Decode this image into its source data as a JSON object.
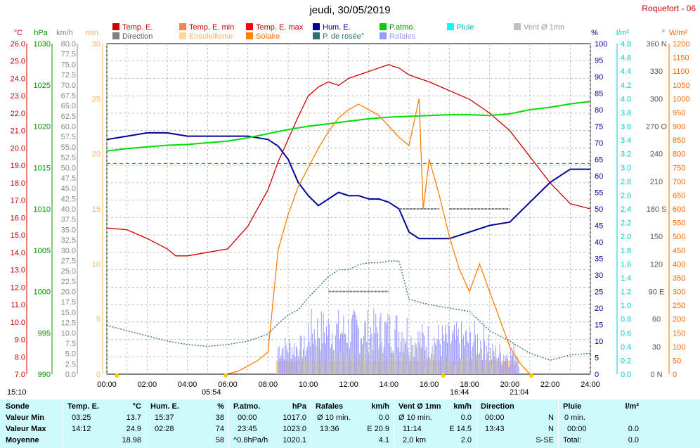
{
  "header": {
    "title": "jeudi, 30/05/2019",
    "station": "Roquefort - 06"
  },
  "legend": [
    {
      "label": "Temp. E.",
      "color": "#cc0000",
      "text_color": "#cc0000"
    },
    {
      "label": "Temp. E. min",
      "color": "#ff7f50",
      "text_color": "#cc0000"
    },
    {
      "label": "Temp. E. max",
      "color": "#ff0000",
      "text_color": "#cc0000"
    },
    {
      "label": "P.atmo.",
      "color": "#00cc00",
      "text_color": "#009900"
    },
    {
      "label": "Pluie",
      "color": "#00ffff",
      "text_color": "#00bbbb"
    },
    {
      "label": "Vent Ø 1mn",
      "color": "#c0c0c0",
      "text_color": "#999999"
    },
    {
      "label": "Direction",
      "color": "#808080",
      "text_color": "#555555"
    },
    {
      "label": "Ensoleilleme",
      "color": "#ffd59a",
      "text_color": "#ffb060"
    },
    {
      "label": "Solaire",
      "color": "#ff8000",
      "text_color": "#ff6600"
    },
    {
      "label": "Hum. E.",
      "color": "#000099",
      "text_color": "#000099"
    },
    {
      "label": "P. de rosée°",
      "color": "#2f6f6f",
      "text_color": "#2f6f6f"
    },
    {
      "label": "Rafales",
      "color": "#9999ff",
      "text_color": "#9999ff"
    }
  ],
  "axes": {
    "units_left": [
      "°C",
      "hPa",
      "km/h",
      "min"
    ],
    "units_right": [
      "%",
      "l/m²",
      "°",
      "W/m²"
    ],
    "temp_ticks": [
      "26.0",
      "25.0",
      "24.0",
      "23.0",
      "22.0",
      "21.0",
      "20.0",
      "19.0",
      "18.0",
      "17.0",
      "16.0",
      "15.0",
      "14.0",
      "13.0",
      "12.0",
      "11.0",
      "10.0",
      "9.0",
      "8.0",
      "7.0"
    ],
    "hpa_ticks": [
      "1030",
      "1025",
      "1020",
      "1015",
      "1010",
      "1005",
      "1000",
      "995",
      "990"
    ],
    "kmh_ticks": [
      "80.0",
      "77.5",
      "75.0",
      "72.5",
      "70.0",
      "67.5",
      "65.0",
      "62.5",
      "60.0",
      "57.5",
      "55.0",
      "52.5",
      "50.0",
      "47.5",
      "45.0",
      "42.5",
      "40.0",
      "37.5",
      "35.0",
      "32.5",
      "30.0",
      "27.5",
      "25.0",
      "22.5",
      "20.0",
      "17.5",
      "15.0",
      "12.5",
      "10.0",
      "7.5",
      "5.0",
      "2.5",
      "0.0"
    ],
    "min_ticks": [
      "30",
      "25",
      "20",
      "15",
      "10",
      "5",
      "0"
    ],
    "pct_ticks": [
      "100",
      "95",
      "90",
      "85",
      "80",
      "75",
      "70",
      "65",
      "60",
      "55",
      "50",
      "45",
      "40",
      "35",
      "30",
      "25",
      "20",
      "15",
      "10",
      "5",
      "0"
    ],
    "rain_ticks": [
      "4.8",
      "4.6",
      "4.4",
      "4.2",
      "4.0",
      "3.8",
      "3.6",
      "3.4",
      "3.2",
      "3.0",
      "2.8",
      "2.6",
      "2.4",
      "2.2",
      "2.0",
      "1.8",
      "1.6",
      "1.4",
      "1.2",
      "1.0",
      "0.8",
      "0.6",
      "0.4",
      "0.2",
      "0.0"
    ],
    "dir_ticks": [
      "360 N",
      "330",
      "300",
      "270 O",
      "240",
      "210",
      "180 S",
      "150",
      "120",
      "90 E",
      "60",
      "30",
      "0 N"
    ],
    "wm2_ticks": [
      "1200",
      "1150",
      "1100",
      "1050",
      "1000",
      "950",
      "900",
      "850",
      "800",
      "750",
      "700",
      "650",
      "600",
      "550",
      "500",
      "450",
      "400",
      "350",
      "300",
      "250",
      "200",
      "150",
      "100",
      "50",
      "0"
    ],
    "time_ticks": [
      "00:00",
      "02:00",
      "04:00",
      "06:00",
      "08:00",
      "10:00",
      "12:00",
      "14:00",
      "16:00",
      "18:00",
      "20:00",
      "22:00",
      "24:00"
    ]
  },
  "events": {
    "e1": "15:10",
    "e2": "05:54",
    "e3": "16:44",
    "e4": "21:04"
  },
  "chart_data": {
    "type": "line",
    "x_unit": "hours",
    "xlim": [
      0,
      24
    ],
    "series": [
      {
        "name": "Temp. E.",
        "axis": "°C",
        "ylim": [
          7,
          26
        ],
        "x": [
          0,
          1,
          2,
          3,
          3.42,
          4,
          5,
          6,
          7,
          8,
          8.5,
          9,
          9.5,
          10,
          10.5,
          11,
          11.5,
          12,
          12.5,
          13,
          13.5,
          14,
          14.2,
          14.5,
          15,
          15.5,
          16,
          17,
          18,
          19,
          20,
          21,
          22,
          23,
          24
        ],
        "y": [
          15.4,
          15.3,
          14.8,
          14.2,
          13.8,
          13.8,
          14.0,
          14.2,
          15.5,
          17.6,
          19.2,
          20.5,
          21.8,
          23.0,
          23.5,
          23.8,
          23.6,
          24.0,
          24.2,
          24.4,
          24.6,
          24.8,
          24.7,
          24.6,
          24.2,
          24.0,
          23.8,
          23.3,
          22.8,
          22.0,
          21.0,
          19.5,
          18.0,
          16.8,
          16.5
        ]
      },
      {
        "name": "Hum. E.",
        "axis": "%",
        "ylim": [
          0,
          100
        ],
        "x": [
          0,
          1,
          2,
          3,
          4,
          5,
          6,
          7,
          8,
          8.5,
          9,
          9.5,
          10,
          10.5,
          11,
          11.5,
          12,
          12.5,
          13,
          13.5,
          14,
          14.5,
          15,
          15.5,
          16,
          17,
          18,
          19,
          20,
          20.5,
          21,
          22,
          23,
          24
        ],
        "y": [
          71,
          72,
          73,
          73,
          72,
          72,
          72,
          72,
          71,
          69,
          65,
          58,
          54,
          51,
          53,
          55,
          54,
          54,
          53,
          53,
          52,
          50,
          43,
          41,
          41,
          41,
          43,
          45,
          46,
          49,
          52,
          58,
          62,
          62
        ]
      },
      {
        "name": "P.atmo.",
        "axis": "hPa",
        "ylim": [
          990,
          1030
        ],
        "x": [
          0,
          1,
          2,
          3,
          4,
          5,
          6,
          7,
          8,
          9,
          10,
          11,
          12,
          13,
          14,
          15,
          16,
          17,
          18,
          19,
          20,
          21,
          22,
          23,
          24
        ],
        "y": [
          1017.0,
          1017.3,
          1017.5,
          1017.7,
          1017.8,
          1018.0,
          1018.2,
          1018.6,
          1019.1,
          1019.6,
          1020.0,
          1020.3,
          1020.6,
          1020.9,
          1021.1,
          1021.2,
          1021.3,
          1021.4,
          1021.4,
          1021.3,
          1021.5,
          1022.0,
          1022.3,
          1022.7,
          1023.0
        ]
      },
      {
        "name": "Solaire",
        "axis": "W/m²",
        "ylim": [
          0,
          1200
        ],
        "x": [
          5.9,
          6.5,
          7,
          7.5,
          8,
          8.3,
          8.5,
          9,
          9.5,
          10,
          10.5,
          11,
          11.5,
          12,
          12.5,
          13,
          13.5,
          14,
          14.5,
          15,
          15.5,
          15.7,
          16,
          16.5,
          17,
          17.5,
          18,
          18.5,
          19,
          19.5,
          20,
          20.5,
          21
        ],
        "y": [
          0,
          10,
          30,
          50,
          80,
          300,
          450,
          580,
          680,
          750,
          820,
          880,
          930,
          960,
          980,
          960,
          940,
          900,
          860,
          830,
          1000,
          600,
          780,
          650,
          500,
          380,
          300,
          400,
          300,
          200,
          100,
          40,
          0
        ]
      },
      {
        "name": "P. de rosée°",
        "axis": "°C",
        "ylim": [
          7,
          26
        ],
        "x": [
          0,
          1,
          2,
          3,
          4,
          5,
          6,
          7,
          8,
          8.5,
          9,
          9.5,
          10,
          10.5,
          11,
          11.5,
          12,
          12.5,
          13,
          13.5,
          14,
          14.5,
          15,
          16,
          17,
          18,
          19,
          20,
          21,
          22,
          23,
          24
        ],
        "y": [
          9.8,
          9.5,
          9.2,
          8.9,
          8.7,
          8.6,
          8.7,
          8.9,
          9.3,
          9.9,
          10.4,
          10.7,
          11.4,
          12.0,
          12.6,
          13.0,
          13.0,
          13.3,
          13.4,
          13.4,
          13.5,
          13.5,
          11.3,
          11.0,
          10.8,
          10.6,
          9.5,
          8.9,
          8.2,
          7.8,
          8.1,
          8.2
        ]
      },
      {
        "name": "Direction",
        "axis": "°",
        "ylim": [
          0,
          360
        ],
        "x": [
          11,
          14,
          14.5,
          16.5,
          17,
          20
        ],
        "y": [
          90,
          90,
          180,
          180,
          180,
          180
        ]
      }
    ]
  },
  "stats": {
    "headers": {
      "sonde": "Sonde",
      "temp": "Temp. E.",
      "temp_u": "°C",
      "hum": "Hum. E.",
      "hum_u": "%",
      "patm": "P.atmo.",
      "patm_u": "hPa",
      "raf": "Rafales",
      "raf_u": "km/h",
      "vent": "Vent Ø 1mn",
      "vent_u": "km/h",
      "dir": "Direction",
      "pluie": "Pluie",
      "pluie_u": "l/m²"
    },
    "rows": [
      {
        "label": "Valeur Min",
        "t_time": "03:25",
        "t_val": "13.7",
        "h_time": "15:37",
        "h_val": "38",
        "p_time": "00:00",
        "p_val": "1017.0",
        "r_time": "Ø 10 min.",
        "r_val": "0.0",
        "v_time": "Ø 10 min.",
        "v_val": "0.0",
        "d_time": "00:00",
        "d_val": "N",
        "pl_time": "0 min.",
        "pl_val": ""
      },
      {
        "label": "Valeur Max",
        "t_time": "14:12",
        "t_val": "24.9",
        "h_time": "02:28",
        "h_val": "74",
        "p_time": "23:45",
        "p_val": "1023.0",
        "r_time": "13:36",
        "r_val": "E 20.9",
        "v_time": "11:14",
        "v_val": "E 14.5",
        "d_time": "13:43",
        "d_val": "N",
        "pl_time": "00:00",
        "pl_val": "0.0"
      },
      {
        "label": "Moyenne",
        "t_time": "",
        "t_val": "18.98",
        "h_time": "",
        "h_val": "58",
        "p_time": "^0.8hPa/h",
        "p_val": "1020.1",
        "r_time": "",
        "r_val": "4.1",
        "v_time": "2,0 km",
        "v_val": "2.0",
        "d_time": "",
        "d_val": "S-SE",
        "pl_time": "Total:",
        "pl_val": "0.0"
      }
    ]
  },
  "colors": {
    "temp": "#cc0000",
    "hum": "#000099",
    "patm": "#00dd00",
    "solar": "#ff8000",
    "dew": "#2f6f6f",
    "gust": "#9999ff",
    "wind": "#c0c0c0",
    "sun": "#ffd59a",
    "grid": "#b0b0b0",
    "stats_bg": "#cdfafa"
  }
}
